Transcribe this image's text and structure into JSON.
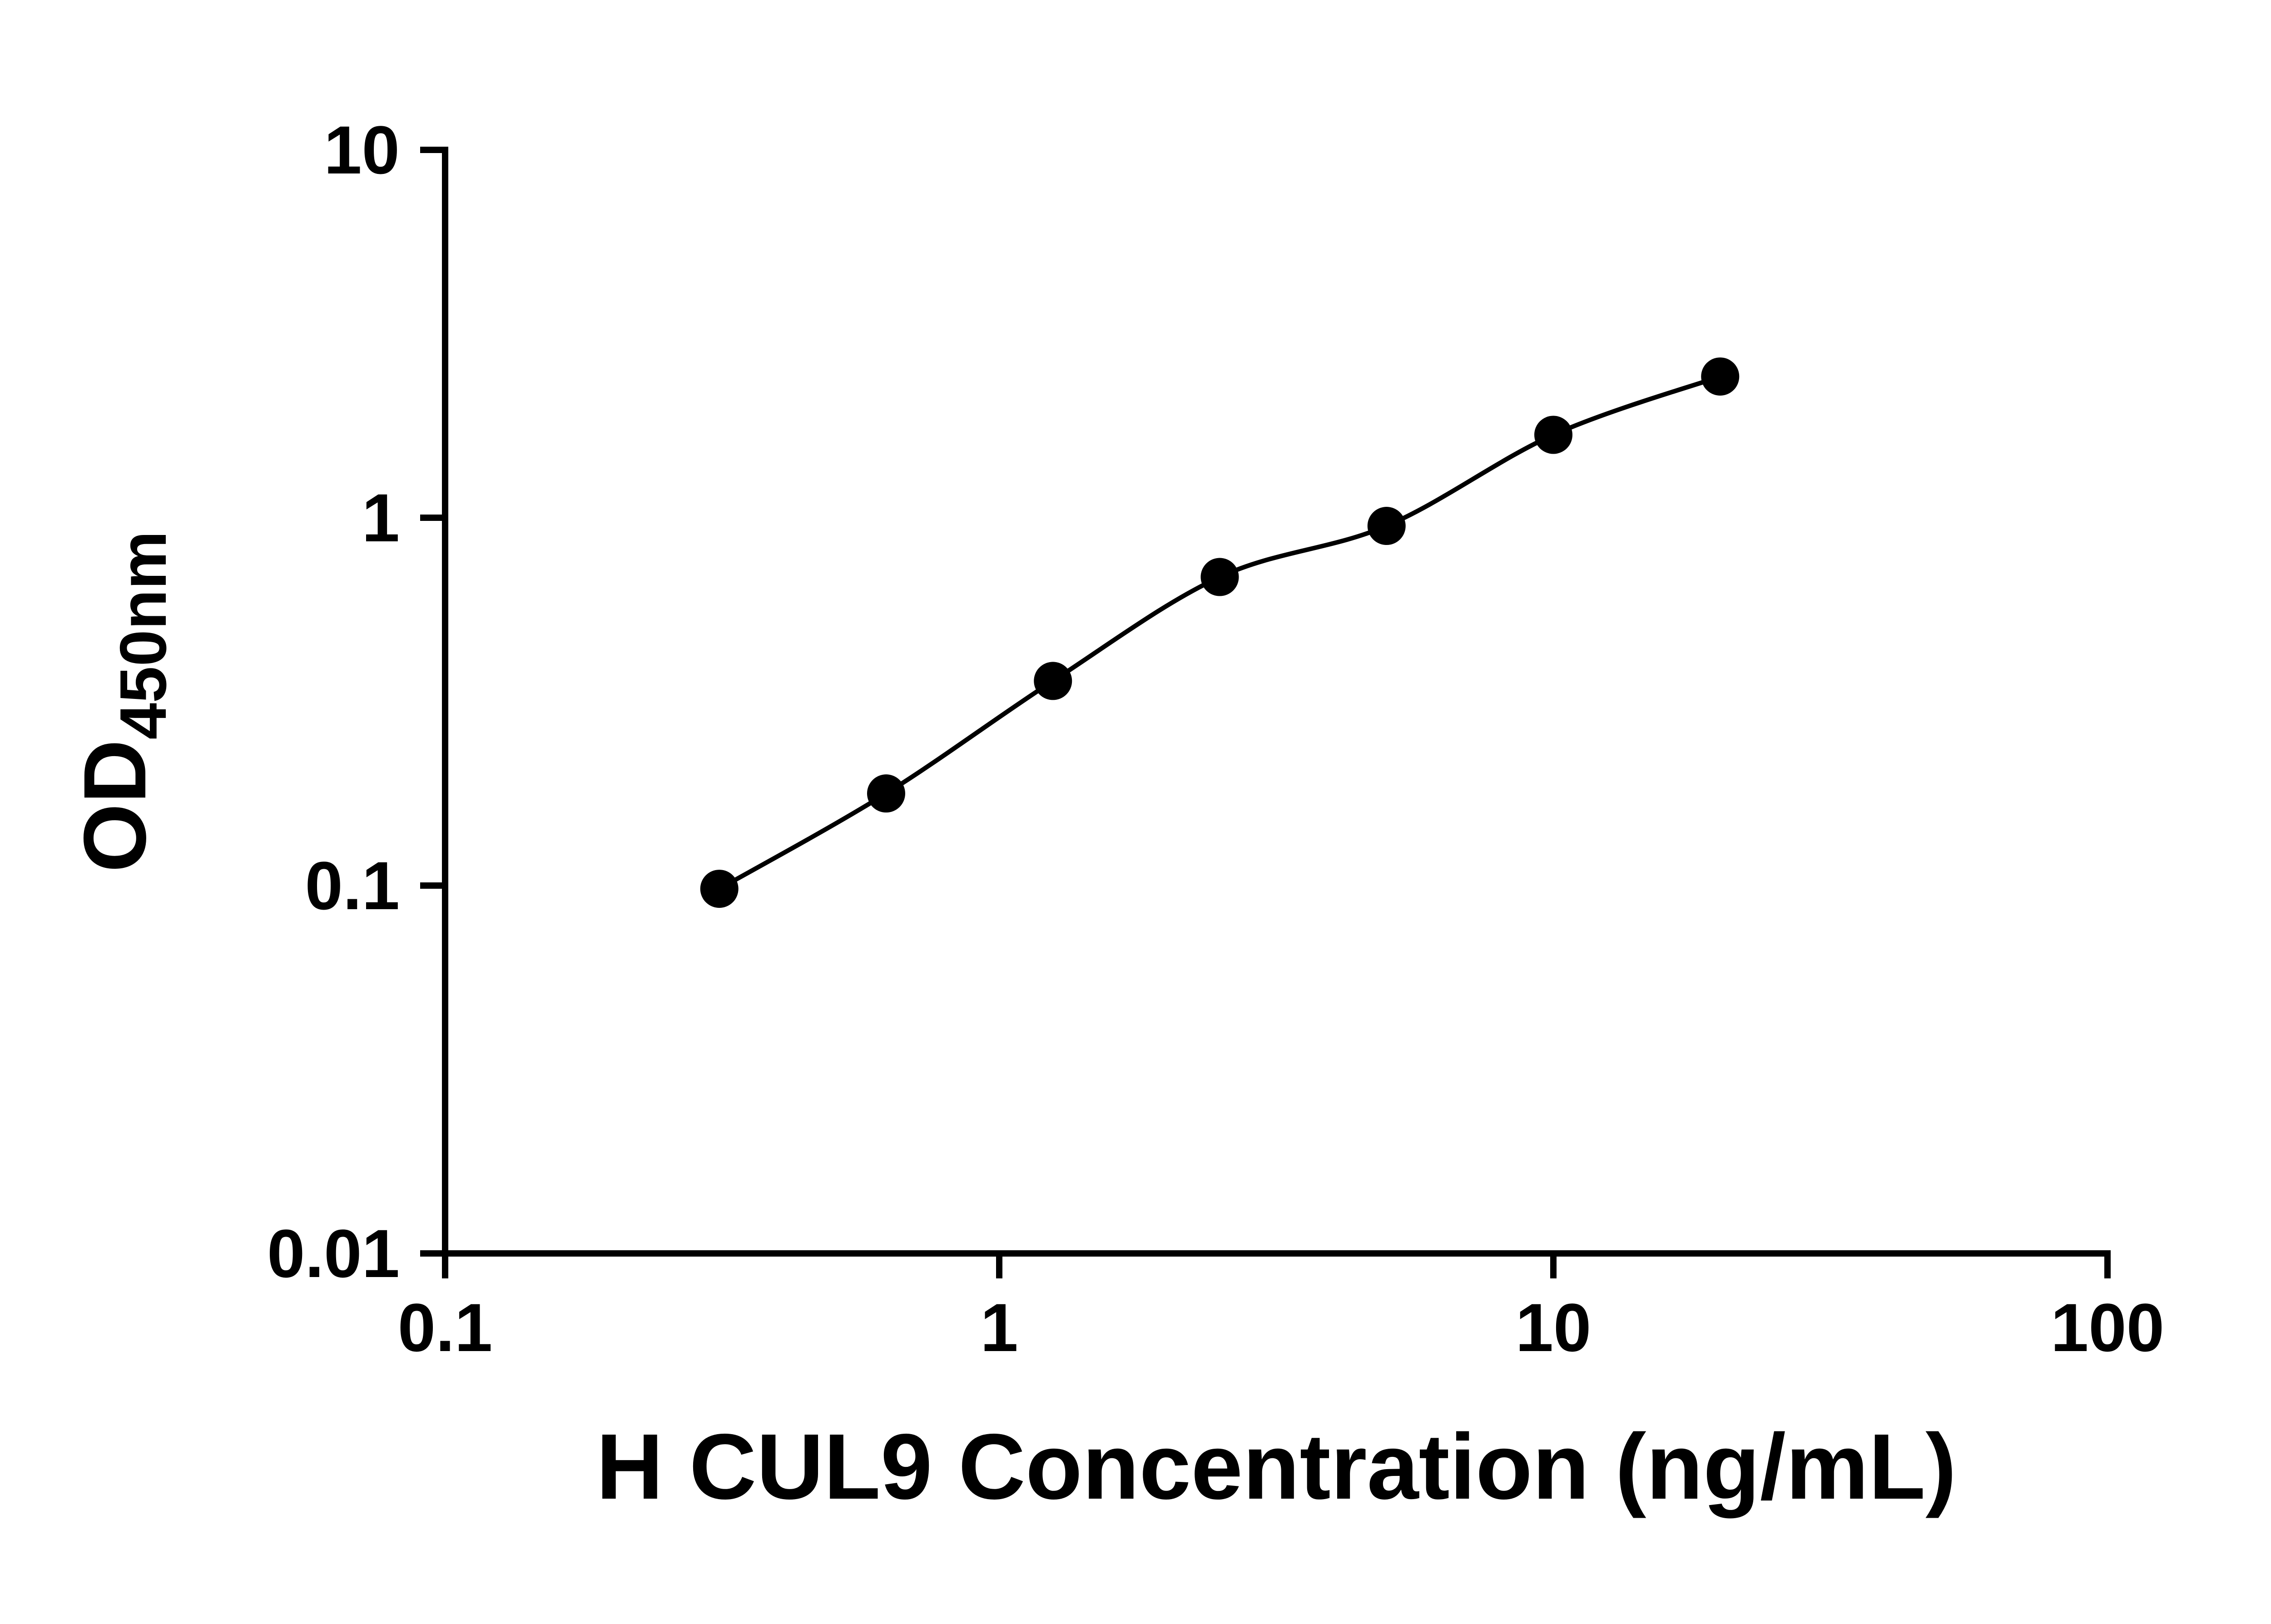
{
  "chart_data": {
    "type": "scatter",
    "title": "",
    "xlabel": "H CUL9 Concentration (ng/mL)",
    "ylabel_main": "OD",
    "ylabel_sub": "450nm",
    "xscale": "log",
    "yscale": "log",
    "xlim": [
      0.1,
      100
    ],
    "ylim": [
      0.01,
      10
    ],
    "x": [
      0.3125,
      0.625,
      1.25,
      2.5,
      5,
      10,
      20
    ],
    "y": [
      0.098,
      0.178,
      0.36,
      0.69,
      0.95,
      1.68,
      2.42
    ],
    "x_ticks": [
      {
        "v": 0.1,
        "label": "0.1"
      },
      {
        "v": 1,
        "label": "1"
      },
      {
        "v": 10,
        "label": "10"
      },
      {
        "v": 100,
        "label": "100"
      }
    ],
    "y_ticks": [
      {
        "v": 0.01,
        "label": "0.01"
      },
      {
        "v": 0.1,
        "label": "0.1"
      },
      {
        "v": 1,
        "label": "1"
      },
      {
        "v": 10,
        "label": "10"
      }
    ],
    "grid": false,
    "legend": "none",
    "marker_color": "#000000",
    "line_color": "#000000",
    "axis_color": "#000000",
    "background": "#ffffff"
  }
}
